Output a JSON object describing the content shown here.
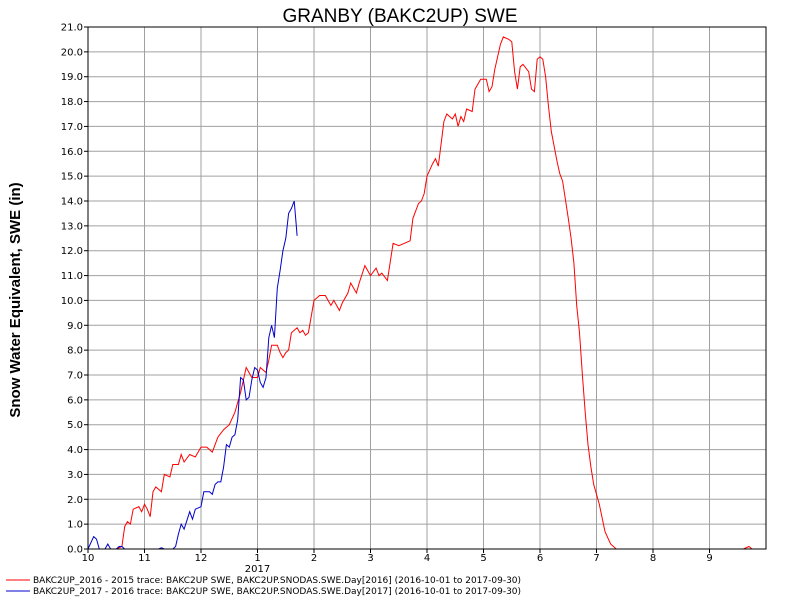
{
  "chart_data": {
    "type": "line",
    "title": "GRANBY (BAKC2UP) SWE",
    "xlabel": "",
    "ylabel": "Snow Water Equivalent, SWE (in)",
    "ylim": [
      0,
      21
    ],
    "xlim": [
      0,
      12
    ],
    "grid": true,
    "legend_placement": "bottom-left",
    "y_ticks": [
      "0.0",
      "1.0",
      "2.0",
      "3.0",
      "4.0",
      "5.0",
      "6.0",
      "7.0",
      "8.0",
      "9.0",
      "10.0",
      "11.0",
      "12.0",
      "13.0",
      "14.0",
      "15.0",
      "16.0",
      "17.0",
      "18.0",
      "19.0",
      "20.0",
      "21.0"
    ],
    "x_ticks": [
      {
        "x": 0,
        "label": "10"
      },
      {
        "x": 1,
        "label": "11"
      },
      {
        "x": 2,
        "label": "12"
      },
      {
        "x": 3,
        "label": "1"
      },
      {
        "x": 4,
        "label": "2"
      },
      {
        "x": 5,
        "label": "3"
      },
      {
        "x": 6,
        "label": "4"
      },
      {
        "x": 7,
        "label": "5"
      },
      {
        "x": 8,
        "label": "6"
      },
      {
        "x": 9,
        "label": "7"
      },
      {
        "x": 10,
        "label": "8"
      },
      {
        "x": 11,
        "label": "9"
      }
    ],
    "year_label": {
      "x": 3,
      "label": "2017"
    },
    "series": [
      {
        "name": "BAKC2UP_2016 - 2015 trace: BAKC2UP SWE, BAKC2UP.SNODAS.SWE.Day[2016] (2016-10-01 to 2017-09-30)",
        "color": "#ff0000",
        "points": [
          [
            0.0,
            0.0
          ],
          [
            0.5,
            0.0
          ],
          [
            0.6,
            0.1
          ],
          [
            0.65,
            0.9
          ],
          [
            0.7,
            1.1
          ],
          [
            0.75,
            1.0
          ],
          [
            0.8,
            1.6
          ],
          [
            0.9,
            1.7
          ],
          [
            0.95,
            1.5
          ],
          [
            1.0,
            1.8
          ],
          [
            1.05,
            1.6
          ],
          [
            1.1,
            1.3
          ],
          [
            1.15,
            2.3
          ],
          [
            1.2,
            2.5
          ],
          [
            1.3,
            2.3
          ],
          [
            1.35,
            3.0
          ],
          [
            1.45,
            2.9
          ],
          [
            1.5,
            3.4
          ],
          [
            1.6,
            3.4
          ],
          [
            1.65,
            3.8
          ],
          [
            1.7,
            3.5
          ],
          [
            1.8,
            3.8
          ],
          [
            1.9,
            3.7
          ],
          [
            2.0,
            4.1
          ],
          [
            2.1,
            4.1
          ],
          [
            2.2,
            3.9
          ],
          [
            2.3,
            4.5
          ],
          [
            2.4,
            4.8
          ],
          [
            2.5,
            5.0
          ],
          [
            2.6,
            5.5
          ],
          [
            2.7,
            6.3
          ],
          [
            2.75,
            6.8
          ],
          [
            2.8,
            7.3
          ],
          [
            2.9,
            6.9
          ],
          [
            3.0,
            6.9
          ],
          [
            3.05,
            7.3
          ],
          [
            3.1,
            7.2
          ],
          [
            3.15,
            7.1
          ],
          [
            3.2,
            7.6
          ],
          [
            3.25,
            8.2
          ],
          [
            3.35,
            8.2
          ],
          [
            3.4,
            7.9
          ],
          [
            3.45,
            7.7
          ],
          [
            3.5,
            7.9
          ],
          [
            3.55,
            8.0
          ],
          [
            3.6,
            8.7
          ],
          [
            3.7,
            8.9
          ],
          [
            3.75,
            8.7
          ],
          [
            3.8,
            8.8
          ],
          [
            3.85,
            8.6
          ],
          [
            3.9,
            8.7
          ],
          [
            4.0,
            10.0
          ],
          [
            4.1,
            10.2
          ],
          [
            4.2,
            10.2
          ],
          [
            4.3,
            9.8
          ],
          [
            4.35,
            10.0
          ],
          [
            4.45,
            9.6
          ],
          [
            4.5,
            9.9
          ],
          [
            4.6,
            10.3
          ],
          [
            4.65,
            10.7
          ],
          [
            4.75,
            10.3
          ],
          [
            4.8,
            10.7
          ],
          [
            4.9,
            11.4
          ],
          [
            5.0,
            11.0
          ],
          [
            5.1,
            11.3
          ],
          [
            5.15,
            11.0
          ],
          [
            5.2,
            11.1
          ],
          [
            5.3,
            10.8
          ],
          [
            5.4,
            12.3
          ],
          [
            5.5,
            12.2
          ],
          [
            5.6,
            12.3
          ],
          [
            5.7,
            12.4
          ],
          [
            5.75,
            13.3
          ],
          [
            5.85,
            13.9
          ],
          [
            5.9,
            14.0
          ],
          [
            5.95,
            14.3
          ],
          [
            6.0,
            15.0
          ],
          [
            6.1,
            15.5
          ],
          [
            6.15,
            15.7
          ],
          [
            6.2,
            15.4
          ],
          [
            6.3,
            17.2
          ],
          [
            6.35,
            17.5
          ],
          [
            6.45,
            17.3
          ],
          [
            6.5,
            17.5
          ],
          [
            6.55,
            17.0
          ],
          [
            6.6,
            17.4
          ],
          [
            6.65,
            17.2
          ],
          [
            6.7,
            17.7
          ],
          [
            6.8,
            17.6
          ],
          [
            6.85,
            18.5
          ],
          [
            6.95,
            18.9
          ],
          [
            7.05,
            18.9
          ],
          [
            7.1,
            18.4
          ],
          [
            7.15,
            18.6
          ],
          [
            7.2,
            19.3
          ],
          [
            7.3,
            20.3
          ],
          [
            7.35,
            20.6
          ],
          [
            7.45,
            20.5
          ],
          [
            7.5,
            20.4
          ],
          [
            7.55,
            19.2
          ],
          [
            7.6,
            18.5
          ],
          [
            7.65,
            19.4
          ],
          [
            7.7,
            19.5
          ],
          [
            7.8,
            19.2
          ],
          [
            7.85,
            18.5
          ],
          [
            7.9,
            18.4
          ],
          [
            7.95,
            19.7
          ],
          [
            8.0,
            19.8
          ],
          [
            8.05,
            19.7
          ],
          [
            8.1,
            19.0
          ],
          [
            8.15,
            17.8
          ],
          [
            8.2,
            16.8
          ],
          [
            8.3,
            15.6
          ],
          [
            8.35,
            15.1
          ],
          [
            8.4,
            14.8
          ],
          [
            8.5,
            13.3
          ],
          [
            8.55,
            12.5
          ],
          [
            8.6,
            11.5
          ],
          [
            8.65,
            9.8
          ],
          [
            8.7,
            8.7
          ],
          [
            8.75,
            7.0
          ],
          [
            8.8,
            5.5
          ],
          [
            8.85,
            4.2
          ],
          [
            8.9,
            3.3
          ],
          [
            8.95,
            2.6
          ],
          [
            9.05,
            1.8
          ],
          [
            9.15,
            0.7
          ],
          [
            9.25,
            0.2
          ],
          [
            9.35,
            0.0
          ],
          [
            11.6,
            0.0
          ],
          [
            11.7,
            0.1
          ],
          [
            11.75,
            0.0
          ]
        ]
      },
      {
        "name": "BAKC2UP_2017 - 2016 trace: BAKC2UP SWE, BAKC2UP.SNODAS.SWE.Day[2017] (2016-10-01 to 2017-09-30)",
        "color": "#0000cc",
        "points": [
          [
            0.0,
            0.0
          ],
          [
            0.1,
            0.5
          ],
          [
            0.15,
            0.4
          ],
          [
            0.2,
            0.0
          ],
          [
            0.3,
            0.0
          ],
          [
            0.35,
            0.2
          ],
          [
            0.4,
            0.0
          ],
          [
            0.5,
            0.0
          ],
          [
            0.55,
            0.1
          ],
          [
            0.6,
            0.1
          ],
          [
            0.65,
            0.0
          ],
          [
            1.25,
            0.0
          ],
          [
            1.3,
            0.05
          ],
          [
            1.35,
            0.0
          ],
          [
            1.5,
            0.0
          ],
          [
            1.55,
            0.1
          ],
          [
            1.6,
            0.6
          ],
          [
            1.65,
            1.0
          ],
          [
            1.7,
            0.8
          ],
          [
            1.8,
            1.5
          ],
          [
            1.85,
            1.2
          ],
          [
            1.9,
            1.6
          ],
          [
            2.0,
            1.7
          ],
          [
            2.05,
            2.3
          ],
          [
            2.15,
            2.3
          ],
          [
            2.2,
            2.2
          ],
          [
            2.25,
            2.6
          ],
          [
            2.3,
            2.7
          ],
          [
            2.35,
            2.7
          ],
          [
            2.4,
            3.3
          ],
          [
            2.45,
            4.2
          ],
          [
            2.5,
            4.1
          ],
          [
            2.55,
            4.5
          ],
          [
            2.6,
            4.6
          ],
          [
            2.65,
            5.2
          ],
          [
            2.7,
            6.9
          ],
          [
            2.75,
            6.8
          ],
          [
            2.8,
            6.0
          ],
          [
            2.85,
            6.1
          ],
          [
            2.9,
            6.8
          ],
          [
            2.95,
            7.3
          ],
          [
            3.0,
            7.2
          ],
          [
            3.05,
            6.7
          ],
          [
            3.1,
            6.5
          ],
          [
            3.15,
            6.9
          ],
          [
            3.2,
            8.5
          ],
          [
            3.25,
            9.0
          ],
          [
            3.3,
            8.5
          ],
          [
            3.35,
            10.5
          ],
          [
            3.4,
            11.2
          ],
          [
            3.45,
            12.0
          ],
          [
            3.5,
            12.5
          ],
          [
            3.55,
            13.5
          ],
          [
            3.6,
            13.7
          ],
          [
            3.65,
            14.0
          ],
          [
            3.68,
            13.2
          ],
          [
            3.7,
            12.6
          ]
        ]
      }
    ]
  }
}
